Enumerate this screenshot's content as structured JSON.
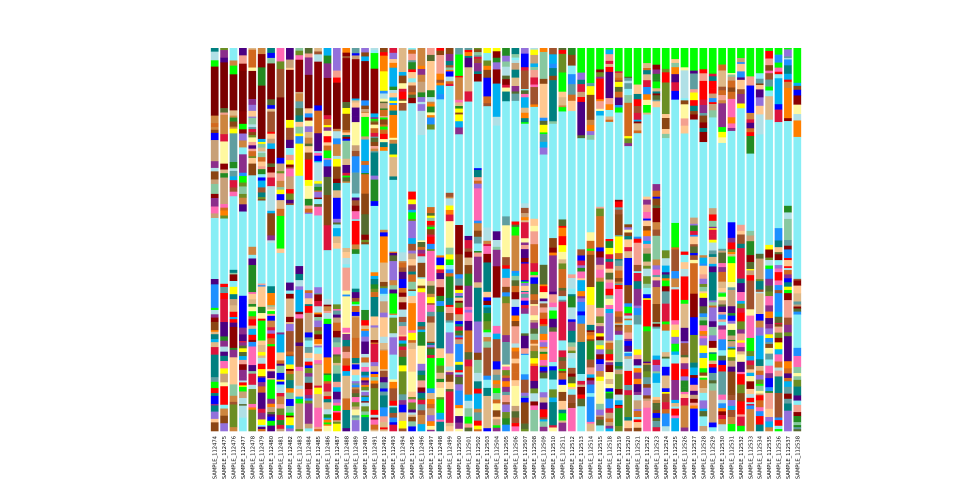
{
  "chart_data": {
    "type": "bar",
    "stacked": true,
    "normalized": true,
    "title": "",
    "xlabel": "",
    "ylabel": "",
    "ylim": [
      0,
      1
    ],
    "grid": false,
    "legend": "none",
    "categories": [
      "SAMPLE_112474",
      "SAMPLE_112475",
      "SAMPLE_112476",
      "SAMPLE_112477",
      "SAMPLE_112478",
      "SAMPLE_112479",
      "SAMPLE_112480",
      "SAMPLE_112481",
      "SAMPLE_112482",
      "SAMPLE_112483",
      "SAMPLE_112484",
      "SAMPLE_112485",
      "SAMPLE_112486",
      "SAMPLE_112487",
      "SAMPLE_112488",
      "SAMPLE_112489",
      "SAMPLE_112490",
      "SAMPLE_112491",
      "SAMPLE_112492",
      "SAMPLE_112493",
      "SAMPLE_112494",
      "SAMPLE_112495",
      "SAMPLE_112496",
      "SAMPLE_112497",
      "SAMPLE_112498",
      "SAMPLE_112499",
      "SAMPLE_112500",
      "SAMPLE_112501",
      "SAMPLE_112502",
      "SAMPLE_112503",
      "SAMPLE_112504",
      "SAMPLE_112505",
      "SAMPLE_112506",
      "SAMPLE_112507",
      "SAMPLE_112508",
      "SAMPLE_112509",
      "SAMPLE_112510",
      "SAMPLE_112511",
      "SAMPLE_112512",
      "SAMPLE_112513",
      "SAMPLE_112514",
      "SAMPLE_112515",
      "SAMPLE_112518",
      "SAMPLE_112519",
      "SAMPLE_112520",
      "SAMPLE_112521",
      "SAMPLE_112522",
      "SAMPLE_112523",
      "SAMPLE_112524",
      "SAMPLE_112525",
      "SAMPLE_112526",
      "SAMPLE_112527",
      "SAMPLE_112528",
      "SAMPLE_112529",
      "SAMPLE_112530",
      "SAMPLE_112531",
      "SAMPLE_112532",
      "SAMPLE_112533",
      "SAMPLE_112534",
      "SAMPLE_112535",
      "SAMPLE_112536",
      "SAMPLE_112537",
      "SAMPLE_112538"
    ],
    "palette": [
      "#8B0000",
      "#A0522D",
      "#CD853F",
      "#5F9EA0",
      "#87EEF5",
      "#FFFF00",
      "#FF0000",
      "#8B4513",
      "#228B22",
      "#8B2D8B",
      "#9370DB",
      "#FFC890",
      "#88C8A0",
      "#0000FF",
      "#00B0F0",
      "#FF7F00",
      "#F4A090",
      "#00FF00",
      "#556B2F",
      "#DEB887",
      "#008080",
      "#FF69B4",
      "#FFF8A0",
      "#4B0082",
      "#C8A078",
      "#B0E0E6",
      "#6B8E23",
      "#DC143C",
      "#D2691E",
      "#1E90FF"
    ],
    "series_values": [
      [
        0.02,
        0.03,
        0.01,
        0.04,
        0.02,
        0.12,
        0.02,
        0.01,
        0.03,
        0.02,
        0.04,
        0.02,
        0.01,
        0.03,
        0.02,
        0.01,
        0.12,
        0.02,
        0.03,
        0.01,
        0.02,
        0.01,
        0.01,
        0.06,
        0.02,
        0.01,
        0.02,
        0.01,
        0.03,
        0.02,
        0.01,
        0.02,
        0.03,
        0.01,
        0.01,
        0.02,
        0.01,
        0.02,
        0.01,
        0.01,
        0.01,
        0.01,
        0.01,
        0.02,
        0.01,
        0.01,
        0.01,
        0.01,
        0.01,
        0.02,
        0.08,
        0.02,
        0.03,
        0.02,
        0.01,
        0.02,
        0.03,
        0.01,
        0.02,
        0.01,
        0.02,
        0.01,
        0.02
      ],
      [
        0.05,
        0.04,
        0.06,
        0.05,
        0.07,
        0.06,
        0.04,
        0.05,
        0.06,
        0.05,
        0.04,
        0.05,
        0.04,
        0.06,
        0.05,
        0.04,
        0.03,
        0.05,
        0.04,
        0.05,
        0.04,
        0.03,
        0.04,
        0.03,
        0.04,
        0.03,
        0.04,
        0.03,
        0.04,
        0.03,
        0.04,
        0.03,
        0.04,
        0.03,
        0.03,
        0.04,
        0.03,
        0.04,
        0.03,
        0.03,
        0.04,
        0.03,
        0.04,
        0.03,
        0.03,
        0.04,
        0.03,
        0.04,
        0.03,
        0.04,
        0.05,
        0.04,
        0.04,
        0.05,
        0.04,
        0.03,
        0.05,
        0.04,
        0.03,
        0.04,
        0.03,
        0.04,
        0.03
      ]
    ]
  }
}
